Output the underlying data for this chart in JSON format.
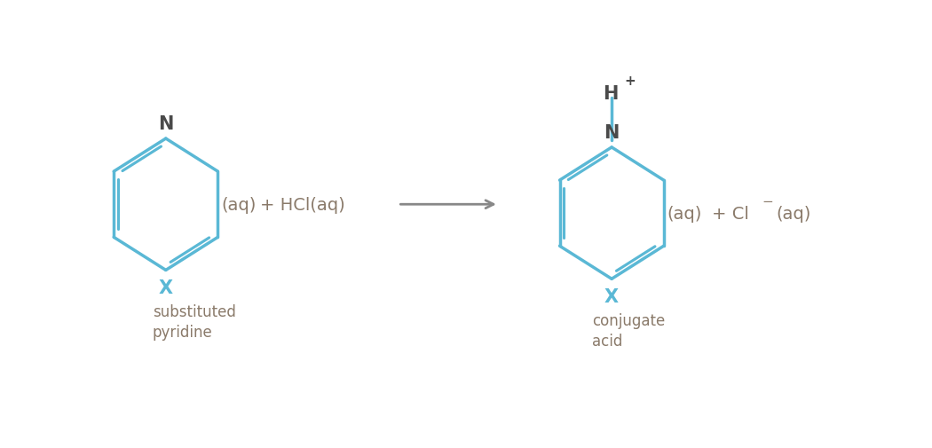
{
  "bg_color": "#ffffff",
  "ring_color": "#5ab8d5",
  "ring_linewidth": 2.5,
  "text_color_dark": "#8a7a6a",
  "text_color_atom_N": "#4a4a4a",
  "text_color_X": "#5ab8d5",
  "arrow_color": "#888888",
  "label1": "substituted\npyridine",
  "label2": "conjugate\nacid",
  "N_label": "N",
  "X_label": "X"
}
